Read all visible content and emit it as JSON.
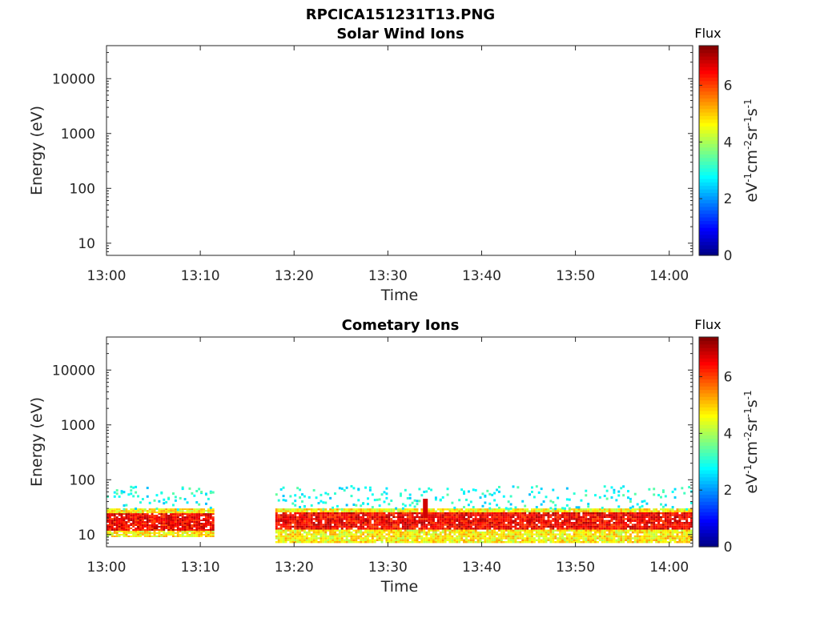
{
  "figure": {
    "title": "RPCICA151231T13.PNG"
  },
  "chart_data": [
    {
      "type": "heatmap",
      "title": "Solar Wind Ions",
      "xlabel": "Time",
      "ylabel": "Energy (eV)",
      "x_ticks": [
        "13:00",
        "13:10",
        "13:20",
        "13:30",
        "13:40",
        "13:50",
        "14:00"
      ],
      "xlim": [
        "13:00",
        "14:02.5"
      ],
      "y_ticks": [
        10,
        100,
        1000,
        10000
      ],
      "y_tick_labels": [
        "10",
        "100",
        "1000",
        "10000"
      ],
      "ylim": [
        6,
        40000
      ],
      "y_scale": "log",
      "colorbar": {
        "title": "Flux",
        "label": "eV-1cm-2sr-1s-1",
        "ticks": [
          0,
          2,
          4,
          6
        ],
        "range": [
          0,
          7.4
        ],
        "colormap": "jet"
      },
      "segments": []
    },
    {
      "type": "heatmap",
      "title": "Cometary Ions",
      "xlabel": "Time",
      "ylabel": "Energy (eV)",
      "x_ticks": [
        "13:00",
        "13:10",
        "13:20",
        "13:30",
        "13:40",
        "13:50",
        "14:00"
      ],
      "xlim": [
        "13:00",
        "14:02.5"
      ],
      "y_ticks": [
        10,
        100,
        1000,
        10000
      ],
      "y_tick_labels": [
        "10",
        "100",
        "1000",
        "10000"
      ],
      "ylim": [
        6,
        40000
      ],
      "y_scale": "log",
      "colorbar": {
        "title": "Flux",
        "label": "eV-1cm-2sr-1s-1",
        "ticks": [
          0,
          2,
          4,
          6
        ],
        "range": [
          0,
          7.4
        ],
        "colormap": "jet"
      },
      "segments": [
        {
          "start": "13:00",
          "end": "13:11.5",
          "core_energy_eV": [
            12,
            25
          ],
          "core_flux": 6.5,
          "edge_energy_eV": [
            9,
            30
          ],
          "edge_flux": 4.8,
          "sparse_energy_eV": [
            30,
            80
          ],
          "sparse_flux": 2.8
        },
        {
          "start": "13:18",
          "end": "14:02.5",
          "core_energy_eV": [
            12,
            25
          ],
          "core_flux": 6.5,
          "edge_energy_eV": [
            7,
            30
          ],
          "edge_flux": 4.8,
          "sparse_energy_eV": [
            30,
            80
          ],
          "sparse_flux": 2.8
        }
      ],
      "features": [
        {
          "time": "13:34",
          "energy_eV": [
            20,
            45
          ],
          "flux": 6.8
        }
      ]
    }
  ]
}
